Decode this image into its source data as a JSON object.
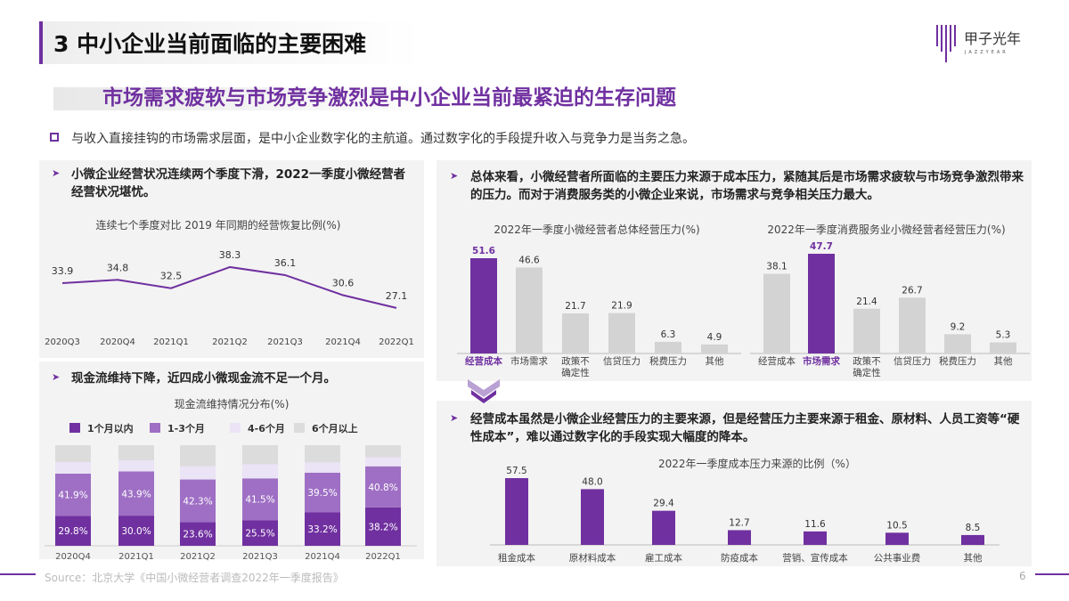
{
  "header": {
    "title": "3 中小企业当前面临的主要困难",
    "logo_text": "甲子光年",
    "logo_sub": "JAZZYEAR"
  },
  "subtitle": "市场需求疲软与市场竞争激烈是中小企业当前最紧迫的生存问题",
  "bullet": "与收入直接挂钩的市场需求层面，是中小企业数字化的主航道。通过数字化的手段提升收入与竞争力是当务之急。",
  "panels": {
    "top_left": "小微企业经营状况连续两个季度下滑，2022一季度小微经营者经营状况堪忧。",
    "bottom_left": "现金流维持下降，近四成小微现金流不足一个月。",
    "top_right": "总体来看，小微经营者所面临的主要压力来源于成本压力，紧随其后是市场需求疲软与市场竞争激烈带来的压力。而对于消费服务类的小微企业来说，市场需求与竞争相关压力最大。",
    "bottom_right": "经营成本虽然是小微企业经营压力的主要来源，但是经营压力主要来源于租金、原材料、人员工资等“硬性成本”，难以通过数字化的手段实现大幅度的降本。"
  },
  "colors": {
    "accent": "#7030a0",
    "mid": "#9e6fc4",
    "light": "#ebe3f6",
    "gray": "#d0d0d0",
    "bg": "#dcdcdc"
  },
  "chart_data": [
    {
      "type": "line",
      "title": "连续七个季度对比 2019 年同期的经营恢复比例(%)",
      "categories": [
        "2020Q3",
        "2020Q4",
        "2021Q1",
        "2021Q2",
        "2021Q3",
        "2021Q4",
        "2022Q1"
      ],
      "values": [
        33.9,
        34.8,
        32.5,
        38.3,
        36.1,
        30.6,
        27.1
      ],
      "labels": [
        "33.9",
        "34.8",
        "32.5",
        "38.3",
        "36.1",
        "30.6",
        "27.1"
      ]
    },
    {
      "type": "bar",
      "stacked": true,
      "title": "现金流维持情况分布(%)",
      "legend": "top",
      "categories": [
        "2020Q4",
        "2021Q1",
        "2021Q2",
        "2021Q3",
        "2021Q4",
        "2022Q1"
      ],
      "series": [
        {
          "name": "1个月以内",
          "values": [
            29.8,
            30.0,
            23.6,
            25.5,
            33.2,
            38.2
          ],
          "labels": [
            "29.8%",
            "30.0%",
            "23.6%",
            "25.5%",
            "33.2%",
            "38.2%"
          ]
        },
        {
          "name": "1-3个月",
          "values": [
            41.9,
            43.9,
            42.3,
            41.5,
            39.5,
            40.8
          ],
          "labels": [
            "41.9%",
            "43.9%",
            "42.3%",
            "41.5%",
            "39.5%",
            "40.8%"
          ]
        },
        {
          "name": "4-6个月",
          "values": [
            11.5,
            11.1,
            13.1,
            14.0,
            10.3,
            9.0
          ]
        },
        {
          "name": "6个月以上",
          "values": [
            16.8,
            15.0,
            21.0,
            19.0,
            17.0,
            12.0
          ]
        }
      ]
    },
    {
      "type": "bar",
      "title": "2022年一季度小微经营者总体经营压力(%)",
      "categories": [
        "经营成本",
        "市场需求",
        "政策不确定性",
        "信贷压力",
        "税费压力",
        "其他"
      ],
      "values": [
        51.6,
        46.6,
        21.7,
        21.9,
        6.3,
        4.9
      ],
      "labels": [
        "51.6",
        "46.6",
        "21.7",
        "21.9",
        "6.3",
        "4.9"
      ],
      "highlight": 0
    },
    {
      "type": "bar",
      "title": "2022年一季度消费服务业小微经营者经营压力(%)",
      "categories": [
        "经营成本",
        "市场需求",
        "政策不确定性",
        "信贷压力",
        "税费压力",
        "其他"
      ],
      "values": [
        38.1,
        47.7,
        21.4,
        26.7,
        9.2,
        5.3
      ],
      "labels": [
        "38.1",
        "47.7",
        "21.4",
        "26.7",
        "9.2",
        "5.3"
      ],
      "highlight": 1
    },
    {
      "type": "bar",
      "title": "2022年一季度成本压力来源的比例（%）",
      "categories": [
        "租金成本",
        "原材料成本",
        "雇工成本",
        "防疫成本",
        "营销、宣传成本",
        "公共事业费",
        "其他"
      ],
      "values": [
        57.5,
        48.0,
        29.4,
        12.7,
        11.6,
        10.5,
        8.5
      ],
      "labels": [
        "57.5",
        "48.0",
        "29.4",
        "12.7",
        "11.6",
        "10.5",
        "8.5"
      ]
    }
  ],
  "footer": {
    "source": "Source：北京大学《中国小微经营者调查2022年一季度报告》",
    "page": "6"
  }
}
